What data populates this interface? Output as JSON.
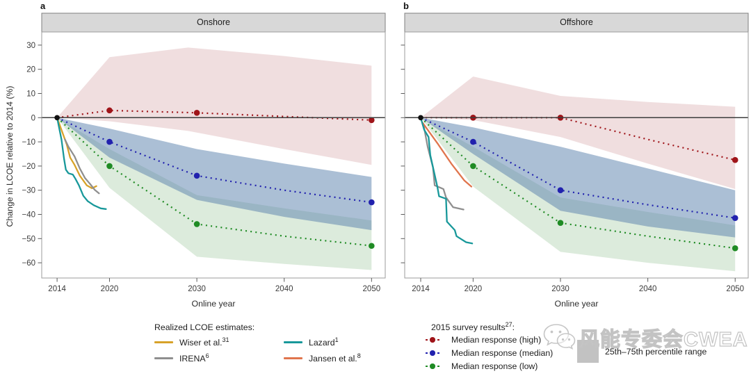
{
  "figure": {
    "panel_letters": [
      "a",
      "b"
    ],
    "y_axis_label": "Change in LCOE relative to 2014 (%)"
  },
  "watermark": {
    "icon": "wechat-icon",
    "text": "风能专委会CWEA"
  },
  "legend_realized": {
    "title": "Realized LCOE estimates:",
    "items": [
      {
        "label": "Wiser et al.",
        "sup": "31",
        "color": "#d7a229"
      },
      {
        "label": "IRENA",
        "sup": "6",
        "color": "#8f8f8f"
      },
      {
        "label": "Lazard",
        "sup": "1",
        "color": "#18989a"
      },
      {
        "label": "Jansen et al.",
        "sup": "8",
        "color": "#e0754d"
      }
    ]
  },
  "legend_survey": {
    "title": "2015 survey results",
    "title_sup": "27",
    "title_colon": ":",
    "items": [
      {
        "label": "Median response (high)",
        "color": "#9f1419"
      },
      {
        "label": "Median response (median)",
        "color": "#2121ae"
      },
      {
        "label": "Median response (low)",
        "color": "#1f8b24"
      }
    ],
    "range_label": "25th–75th percentile range",
    "range_color": "#c2c2c2"
  },
  "chart_data": [
    {
      "type": "line",
      "panel": "a",
      "title": "Onshore",
      "xlabel": "Online year",
      "ylabel": "Change in LCOE relative to 2014 (%)",
      "xlim": [
        2012.2,
        2051.6
      ],
      "ylim": [
        -66.5,
        33.8
      ],
      "x_ticks": [
        2014,
        2020,
        2030,
        2040,
        2050
      ],
      "x_tick_labels": [
        "2014",
        "2020",
        "2030",
        "2040",
        "2050"
      ],
      "y_ticks": [
        30,
        20,
        10,
        0,
        -10,
        -20,
        -30,
        -40,
        -50,
        -60
      ],
      "y_tick_labels": [
        "30",
        "20",
        "10",
        "0",
        "−10",
        "−20",
        "−30",
        "−40",
        "−50",
        "−60"
      ],
      "zero_line": 0,
      "origin": {
        "year": 2014,
        "value": 0
      },
      "survey_x": [
        2014,
        2020,
        2030,
        2040,
        2050
      ],
      "marker_years": [
        2020,
        2030,
        2050
      ],
      "survey_series": [
        {
          "name": "Median response (high)",
          "color": "#9f1419",
          "values": [
            0,
            3,
            2,
            0.5,
            -1
          ]
        },
        {
          "name": "Median response (median)",
          "color": "#2121ae",
          "values": [
            0,
            -10,
            -24,
            -30,
            -35
          ]
        },
        {
          "name": "Median response (low)",
          "color": "#1f8b24",
          "values": [
            0,
            -20,
            -44,
            -49,
            -53
          ]
        }
      ],
      "bands": [
        {
          "name": "high 25th-75th percentile",
          "fill": "rgba(193,115,122,0.24)",
          "x": [
            2014,
            2020,
            2029,
            2040,
            2050
          ],
          "top": [
            0,
            25,
            29,
            25.5,
            21.5
          ],
          "bottom": [
            0,
            -1.5,
            -5.5,
            -13,
            -19.5
          ]
        },
        {
          "name": "low 25th-75th percentile",
          "fill": "rgba(125,182,125,0.27)",
          "x": [
            2014,
            2020,
            2030,
            2040,
            2050
          ],
          "top": [
            0,
            -13,
            -32,
            -37.5,
            -42.5
          ],
          "bottom": [
            0,
            -29,
            -57.5,
            -60.5,
            -63
          ]
        },
        {
          "name": "median 25th-75th percentile",
          "fill": "rgba(88,128,172,0.5)",
          "x": [
            2014,
            2020,
            2030,
            2040,
            2050
          ],
          "top": [
            0,
            -4.5,
            -13,
            -19,
            -24.5
          ],
          "bottom": [
            0,
            -16.5,
            -34,
            -41,
            -46.5
          ]
        }
      ],
      "realized_series": [
        {
          "name": "Wiser et al.",
          "color": "#d7a229",
          "points": [
            [
              2014,
              0
            ],
            [
              2014.8,
              -8
            ],
            [
              2015.1,
              -11
            ],
            [
              2015.5,
              -16.5
            ],
            [
              2016,
              -19.5
            ],
            [
              2016.6,
              -24
            ],
            [
              2017.4,
              -28
            ],
            [
              2018,
              -29.2
            ],
            [
              2018.5,
              -28.3
            ]
          ]
        },
        {
          "name": "IRENA",
          "color": "#8f8f8f",
          "points": [
            [
              2014.9,
              -9
            ],
            [
              2015.3,
              -12
            ],
            [
              2016,
              -16
            ],
            [
              2016.6,
              -21
            ],
            [
              2017.2,
              -25
            ],
            [
              2017.8,
              -27.5
            ],
            [
              2018.3,
              -29.8
            ],
            [
              2018.8,
              -31.3
            ]
          ]
        },
        {
          "name": "Lazard",
          "color": "#18989a",
          "points": [
            [
              2014,
              0
            ],
            [
              2014.5,
              -9
            ],
            [
              2014.8,
              -17
            ],
            [
              2015,
              -21.5
            ],
            [
              2015.3,
              -23
            ],
            [
              2015.8,
              -23.5
            ],
            [
              2016.1,
              -25.3
            ],
            [
              2016.5,
              -28
            ],
            [
              2017,
              -32.3
            ],
            [
              2017.5,
              -34.5
            ],
            [
              2018.2,
              -36.2
            ],
            [
              2019,
              -37.5
            ],
            [
              2019.6,
              -37.8
            ]
          ]
        }
      ]
    },
    {
      "type": "line",
      "panel": "b",
      "title": "Offshore",
      "xlabel": "Online year",
      "ylabel": "Change in LCOE relative to 2014 (%)",
      "xlim": [
        2012.2,
        2051.6
      ],
      "ylim": [
        -66.5,
        33.8
      ],
      "x_ticks": [
        2014,
        2020,
        2030,
        2040,
        2050
      ],
      "x_tick_labels": [
        "2014",
        "2020",
        "2030",
        "2040",
        "2050"
      ],
      "y_ticks": [
        30,
        20,
        10,
        0,
        -10,
        -20,
        -30,
        -40,
        -50,
        -60
      ],
      "y_tick_labels": [
        "30",
        "20",
        "10",
        "0",
        "−10",
        "−20",
        "−30",
        "−40",
        "−50",
        "−60"
      ],
      "zero_line": 0,
      "origin": {
        "year": 2014,
        "value": 0
      },
      "survey_x": [
        2014,
        2020,
        2030,
        2040,
        2050
      ],
      "marker_years": [
        2020,
        2030,
        2050
      ],
      "survey_series": [
        {
          "name": "Median response (high)",
          "color": "#9f1419",
          "values": [
            0,
            0,
            0,
            -9,
            -17.5
          ]
        },
        {
          "name": "Median response (median)",
          "color": "#2121ae",
          "values": [
            0,
            -10,
            -30,
            -36,
            -41.5
          ]
        },
        {
          "name": "Median response (low)",
          "color": "#1f8b24",
          "values": [
            0,
            -20,
            -43.5,
            -49,
            -54
          ]
        }
      ],
      "bands": [
        {
          "name": "high 25th-75th percentile",
          "fill": "rgba(193,115,122,0.24)",
          "x": [
            2014,
            2020,
            2030,
            2040,
            2050
          ],
          "top": [
            0,
            17,
            9,
            6.5,
            4.5
          ],
          "bottom": [
            0,
            -1,
            -8,
            -19,
            -29.5
          ]
        },
        {
          "name": "low 25th-75th percentile",
          "fill": "rgba(125,182,125,0.27)",
          "x": [
            2014,
            2020,
            2030,
            2040,
            2050
          ],
          "top": [
            0,
            -12,
            -33,
            -39,
            -44.5
          ],
          "bottom": [
            0,
            -28.5,
            -55.5,
            -60,
            -63.5
          ]
        },
        {
          "name": "median 25th-75th percentile",
          "fill": "rgba(88,128,172,0.5)",
          "x": [
            2014,
            2020,
            2030,
            2040,
            2050
          ],
          "top": [
            0,
            -4,
            -12,
            -21,
            -30
          ],
          "bottom": [
            0,
            -15,
            -38.5,
            -45,
            -49.5
          ]
        }
      ],
      "realized_series": [
        {
          "name": "IRENA",
          "color": "#8f8f8f",
          "points": [
            [
              2014.3,
              -2.5
            ],
            [
              2014.8,
              -12
            ],
            [
              2015.4,
              -20.5
            ],
            [
              2015.6,
              -28
            ],
            [
              2016.6,
              -29.5
            ],
            [
              2016.9,
              -33
            ],
            [
              2017.7,
              -37
            ],
            [
              2018.9,
              -38
            ]
          ]
        },
        {
          "name": "Jansen et al.",
          "color": "#e0754d",
          "points": [
            [
              2014.2,
              -2
            ],
            [
              2016,
              -11
            ],
            [
              2017.5,
              -19
            ],
            [
              2019,
              -26
            ],
            [
              2019.8,
              -28.5
            ]
          ]
        },
        {
          "name": "Lazard",
          "color": "#18989a",
          "points": [
            [
              2014,
              0
            ],
            [
              2014.4,
              -5
            ],
            [
              2014.9,
              -8
            ],
            [
              2015.1,
              -15.5
            ],
            [
              2015.9,
              -28.5
            ],
            [
              2016.1,
              -32.5
            ],
            [
              2016.9,
              -33.5
            ],
            [
              2017,
              -43
            ],
            [
              2017.9,
              -46.5
            ],
            [
              2018.1,
              -49
            ],
            [
              2019.2,
              -51.5
            ],
            [
              2019.9,
              -52
            ]
          ]
        }
      ]
    }
  ]
}
